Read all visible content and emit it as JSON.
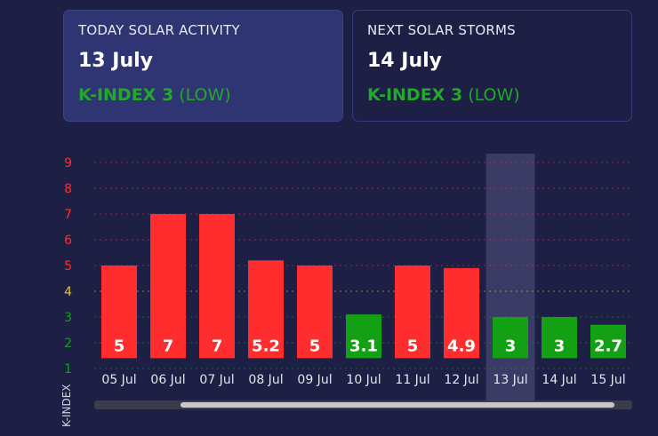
{
  "today": {
    "label": "TODAY SOLAR ACTIVITY",
    "date": "13 July",
    "kindex": "K-INDEX 3",
    "level": "(LOW)"
  },
  "next": {
    "label": "NEXT SOLAR STORMS",
    "date": "14 July",
    "kindex": "K-INDEX 3",
    "level": "(LOW)"
  },
  "colors": {
    "background": "#1e1f45",
    "high": "#ff2d2d",
    "low": "#14a014",
    "moderate_label": "#e8c23a",
    "highlight": "#3a3c66"
  },
  "chart_data": {
    "type": "bar",
    "categories": [
      "05 Jul",
      "06 Jul",
      "07 Jul",
      "08 Jul",
      "09 Jul",
      "10 Jul",
      "11 Jul",
      "12 Jul",
      "13 Jul",
      "14 Jul",
      "15 Jul"
    ],
    "values": [
      5,
      7,
      7,
      5.2,
      5,
      3.1,
      5,
      4.9,
      3,
      3,
      2.7
    ],
    "value_labels": [
      "5",
      "7",
      "7",
      "5.2",
      "5",
      "3.1",
      "5",
      "4.9",
      "3",
      "3",
      "2.7"
    ],
    "highlighted": "13 Jul",
    "ylabel": "K-INDEX",
    "yticks": [
      1,
      2,
      3,
      4,
      5,
      6,
      7,
      8,
      9
    ],
    "ylim": [
      1,
      9
    ],
    "grid": true
  },
  "scrollbar": {
    "position": 0.16,
    "extent": 0.84
  }
}
